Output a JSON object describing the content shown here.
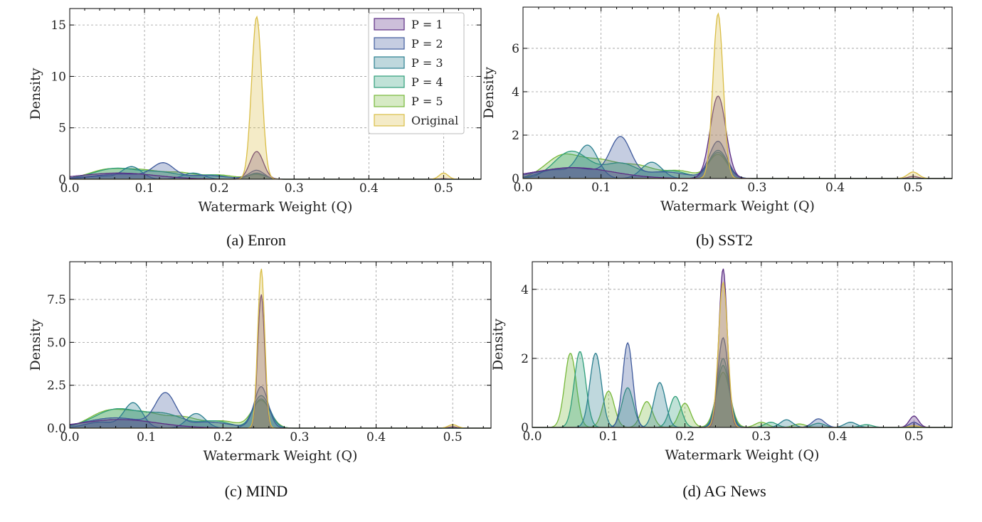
{
  "colors": {
    "P1": "#5b2c83",
    "P2": "#3f5a9c",
    "P3": "#2a7f8f",
    "P4": "#2f9e7a",
    "P5": "#76b83a",
    "Original": "#d9bd45"
  },
  "chart_data": [
    {
      "type": "area",
      "caption": "(a) Enron",
      "xlabel": "Watermark Weight (Q)",
      "ylabel": "Density",
      "xlim": [
        0.0,
        0.55
      ],
      "ylim": [
        0,
        16.6
      ],
      "xticks": [
        "0.0",
        "0.1",
        "0.2",
        "0.3",
        "0.4",
        "0.5"
      ],
      "yticks": [
        "0",
        "5",
        "10",
        "15"
      ],
      "ytick_values": [
        0,
        5,
        10,
        15
      ],
      "grid": true,
      "legend": {
        "placement": "top-right",
        "entries": [
          "P = 1",
          "P = 2",
          "P = 3",
          "P = 4",
          "P = 5",
          "Original"
        ]
      },
      "series": [
        {
          "key": "P1",
          "peaks": [
            [
              0.25,
              2.7,
              0.009
            ],
            [
              0.065,
              0.6,
              0.05
            ],
            [
              0.5,
              0.05,
              0.005
            ]
          ]
        },
        {
          "key": "P2",
          "peaks": [
            [
              0.125,
              1.35,
              0.014
            ],
            [
              0.25,
              0.85,
              0.01
            ],
            [
              0.07,
              0.5,
              0.04
            ],
            [
              0.18,
              0.35,
              0.03
            ]
          ]
        },
        {
          "key": "P3",
          "peaks": [
            [
              0.083,
              1.2,
              0.013
            ],
            [
              0.165,
              0.6,
              0.014
            ],
            [
              0.25,
              0.6,
              0.011
            ],
            [
              0.04,
              0.3,
              0.02
            ]
          ]
        },
        {
          "key": "P4",
          "peaks": [
            [
              0.062,
              1.05,
              0.03
            ],
            [
              0.125,
              0.6,
              0.025
            ],
            [
              0.19,
              0.4,
              0.02
            ],
            [
              0.25,
              0.5,
              0.011
            ]
          ]
        },
        {
          "key": "P5",
          "peaks": [
            [
              0.05,
              0.9,
              0.025
            ],
            [
              0.1,
              0.8,
              0.025
            ],
            [
              0.15,
              0.55,
              0.02
            ],
            [
              0.2,
              0.4,
              0.02
            ],
            [
              0.25,
              0.45,
              0.012
            ]
          ]
        },
        {
          "key": "Original",
          "peaks": [
            [
              0.25,
              15.8,
              0.0068
            ],
            [
              0.5,
              0.6,
              0.006
            ]
          ]
        }
      ]
    },
    {
      "type": "area",
      "caption": "(b) SST2",
      "xlabel": "Watermark Weight (Q)",
      "ylabel": "Density",
      "xlim": [
        0.0,
        0.55
      ],
      "ylim": [
        0,
        7.9
      ],
      "xticks": [
        "0.0",
        "0.1",
        "0.2",
        "0.3",
        "0.4",
        "0.5"
      ],
      "yticks": [
        "0",
        "2",
        "4",
        "6"
      ],
      "ytick_values": [
        0,
        2,
        4,
        6
      ],
      "grid": true,
      "series": [
        {
          "key": "P1",
          "peaks": [
            [
              0.25,
              3.8,
              0.01
            ],
            [
              0.065,
              0.5,
              0.05
            ],
            [
              0.5,
              0.1,
              0.006
            ]
          ]
        },
        {
          "key": "P2",
          "peaks": [
            [
              0.125,
              1.75,
              0.013
            ],
            [
              0.25,
              1.7,
              0.011
            ],
            [
              0.06,
              0.5,
              0.04
            ],
            [
              0.18,
              0.3,
              0.03
            ]
          ]
        },
        {
          "key": "P3",
          "peaks": [
            [
              0.083,
              1.5,
              0.013
            ],
            [
              0.165,
              0.75,
              0.013
            ],
            [
              0.25,
              1.3,
              0.012
            ],
            [
              0.04,
              0.4,
              0.02
            ]
          ]
        },
        {
          "key": "P4",
          "peaks": [
            [
              0.062,
              1.25,
              0.022
            ],
            [
              0.125,
              0.7,
              0.022
            ],
            [
              0.19,
              0.35,
              0.02
            ],
            [
              0.25,
              1.2,
              0.012
            ]
          ]
        },
        {
          "key": "P5",
          "peaks": [
            [
              0.05,
              1.0,
              0.022
            ],
            [
              0.1,
              0.8,
              0.025
            ],
            [
              0.15,
              0.5,
              0.02
            ],
            [
              0.2,
              0.35,
              0.02
            ],
            [
              0.25,
              1.1,
              0.012
            ]
          ]
        },
        {
          "key": "Original",
          "peaks": [
            [
              0.25,
              7.6,
              0.0065
            ],
            [
              0.5,
              0.3,
              0.007
            ]
          ]
        }
      ]
    },
    {
      "type": "area",
      "caption": "(c) MIND",
      "xlabel": "Watermark Weight (Q)",
      "ylabel": "Density",
      "xlim": [
        0.0,
        0.55
      ],
      "ylim": [
        0,
        9.7
      ],
      "xticks": [
        "0.0",
        "0.1",
        "0.2",
        "0.3",
        "0.4",
        "0.5"
      ],
      "yticks": [
        "0.0",
        "2.5",
        "5.0",
        "7.5"
      ],
      "ytick_values": [
        0,
        2.5,
        5,
        7.5
      ],
      "grid": true,
      "series": [
        {
          "key": "P1",
          "peaks": [
            [
              0.25,
              7.8,
              0.0045
            ],
            [
              0.065,
              0.5,
              0.05
            ],
            [
              0.5,
              0.08,
              0.005
            ]
          ]
        },
        {
          "key": "P2",
          "peaks": [
            [
              0.125,
              1.85,
              0.013
            ],
            [
              0.25,
              2.4,
              0.009
            ],
            [
              0.06,
              0.6,
              0.04
            ],
            [
              0.18,
              0.35,
              0.03
            ]
          ]
        },
        {
          "key": "P3",
          "peaks": [
            [
              0.083,
              1.45,
              0.012
            ],
            [
              0.165,
              0.85,
              0.012
            ],
            [
              0.25,
              1.9,
              0.011
            ],
            [
              0.04,
              0.35,
              0.02
            ]
          ]
        },
        {
          "key": "P4",
          "peaks": [
            [
              0.062,
              1.1,
              0.03
            ],
            [
              0.125,
              0.75,
              0.025
            ],
            [
              0.19,
              0.4,
              0.02
            ],
            [
              0.25,
              1.7,
              0.011
            ]
          ]
        },
        {
          "key": "P5",
          "peaks": [
            [
              0.05,
              0.95,
              0.025
            ],
            [
              0.1,
              0.8,
              0.025
            ],
            [
              0.15,
              0.55,
              0.02
            ],
            [
              0.2,
              0.4,
              0.02
            ],
            [
              0.25,
              1.6,
              0.012
            ]
          ]
        },
        {
          "key": "Original",
          "peaks": [
            [
              0.25,
              9.3,
              0.0045
            ],
            [
              0.5,
              0.2,
              0.006
            ]
          ]
        }
      ]
    },
    {
      "type": "area",
      "caption": "(d) AG News",
      "xlabel": "Watermark Weight (Q)",
      "ylabel": "Density",
      "xlim": [
        0.0,
        0.55
      ],
      "ylim": [
        0,
        4.8
      ],
      "xticks": [
        "0.0",
        "0.1",
        "0.2",
        "0.3",
        "0.4",
        "0.5"
      ],
      "yticks": [
        "0",
        "2",
        "4"
      ],
      "ytick_values": [
        0,
        2,
        4
      ],
      "grid": true,
      "series": [
        {
          "key": "P1",
          "peaks": [
            [
              0.25,
              4.6,
              0.0055
            ],
            [
              0.5,
              0.33,
              0.006
            ]
          ]
        },
        {
          "key": "P2",
          "peaks": [
            [
              0.125,
              2.45,
              0.0065
            ],
            [
              0.25,
              2.6,
              0.007
            ],
            [
              0.375,
              0.25,
              0.008
            ],
            [
              0.5,
              0.15,
              0.006
            ]
          ]
        },
        {
          "key": "P3",
          "peaks": [
            [
              0.083,
              2.15,
              0.0075
            ],
            [
              0.167,
              1.3,
              0.0075
            ],
            [
              0.25,
              2.0,
              0.008
            ],
            [
              0.333,
              0.22,
              0.008
            ],
            [
              0.417,
              0.15,
              0.008
            ]
          ]
        },
        {
          "key": "P4",
          "peaks": [
            [
              0.0625,
              2.2,
              0.0075
            ],
            [
              0.125,
              1.15,
              0.0075
            ],
            [
              0.1875,
              0.9,
              0.0075
            ],
            [
              0.25,
              1.8,
              0.008
            ],
            [
              0.3125,
              0.15,
              0.008
            ],
            [
              0.375,
              0.12,
              0.008
            ],
            [
              0.4375,
              0.08,
              0.008
            ]
          ]
        },
        {
          "key": "P5",
          "peaks": [
            [
              0.05,
              2.15,
              0.0075
            ],
            [
              0.1,
              1.05,
              0.0075
            ],
            [
              0.15,
              0.75,
              0.0075
            ],
            [
              0.2,
              0.7,
              0.0075
            ],
            [
              0.25,
              1.6,
              0.009
            ],
            [
              0.3,
              0.15,
              0.008
            ],
            [
              0.35,
              0.1,
              0.008
            ]
          ]
        },
        {
          "key": "Original",
          "peaks": [
            [
              0.25,
              4.2,
              0.006
            ],
            [
              0.5,
              0.05,
              0.006
            ]
          ]
        }
      ]
    }
  ]
}
